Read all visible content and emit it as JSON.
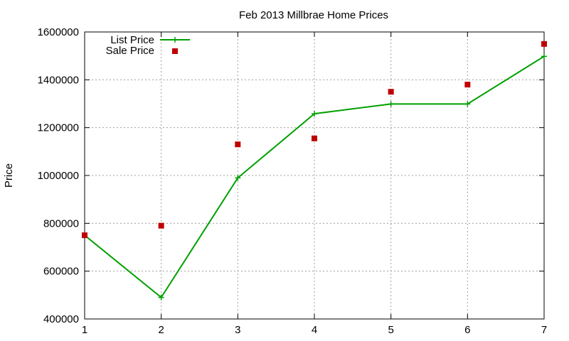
{
  "chart_data": {
    "type": "line",
    "title": "Feb 2013 Millbrae Home Prices",
    "xlabel": "",
    "ylabel": "Price",
    "x": [
      1,
      2,
      3,
      4,
      5,
      6,
      7
    ],
    "xlim": [
      1,
      7
    ],
    "ylim": [
      400000,
      1600000
    ],
    "xticks": [
      "1",
      "2",
      "3",
      "4",
      "5",
      "6",
      "7"
    ],
    "yticks": [
      "400000",
      "600000",
      "800000",
      "1000000",
      "1200000",
      "1400000",
      "1600000"
    ],
    "grid": true,
    "legend_position": "top-left",
    "series": [
      {
        "name": "List Price",
        "style": "line+cross",
        "color": "#00a000",
        "values": [
          750000,
          490000,
          990000,
          1258000,
          1299000,
          1299000,
          1498000
        ]
      },
      {
        "name": "Sale Price",
        "style": "square-points",
        "color": "#c00000",
        "values": [
          750000,
          790000,
          1130000,
          1155000,
          1350000,
          1380000,
          1550000
        ]
      }
    ]
  }
}
